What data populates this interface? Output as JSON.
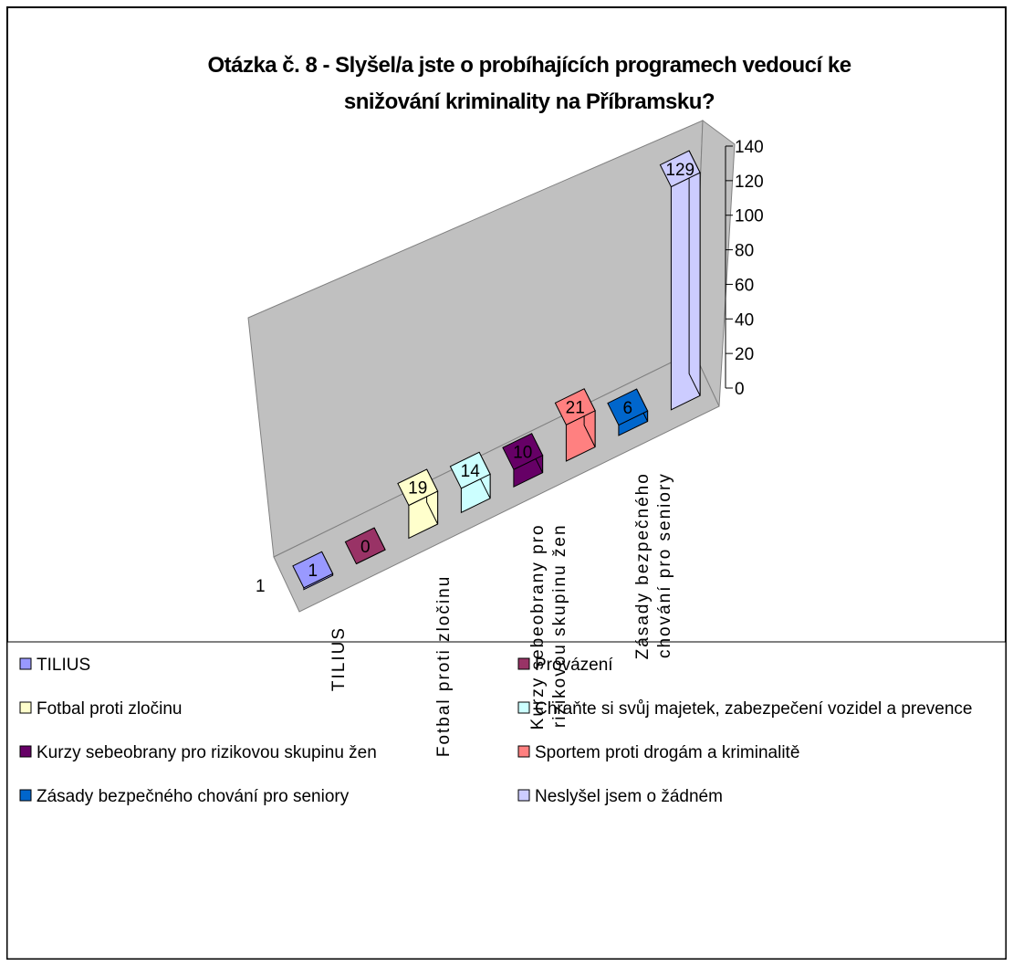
{
  "chart_data": {
    "type": "bar",
    "title": "Otázka č. 8 - Slyšel/a jste o probíhajících programech vedoucí ke snižování kriminality na Příbramsku?",
    "categories": [
      "1"
    ],
    "series": [
      {
        "name": "TILIUS",
        "color": "#9999ff",
        "values": [
          1
        ]
      },
      {
        "name": "Provázení",
        "color": "#993366",
        "values": [
          0
        ]
      },
      {
        "name": "Fotbal proti zločinu",
        "color": "#ffffcc",
        "values": [
          19
        ]
      },
      {
        "name": "Chraňte si svůj majetek, zabezpečení vozidel a prevence",
        "color": "#ccffff",
        "values": [
          14
        ]
      },
      {
        "name": "Kurzy sebeobrany pro rizikovou skupinu žen",
        "color": "#660066",
        "values": [
          10
        ]
      },
      {
        "name": "Sportem proti drogám a kriminalitě",
        "color": "#ff8080",
        "values": [
          21
        ]
      },
      {
        "name": "Zásady bezpečného chování pro seniory",
        "color": "#0066cc",
        "values": [
          6
        ]
      },
      {
        "name": "Neslyšel jsem o žádném",
        "color": "#ccccff",
        "values": [
          129
        ]
      }
    ],
    "ylim": [
      0,
      140
    ],
    "yticks": [
      0,
      20,
      40,
      60,
      80,
      100,
      120,
      140
    ],
    "legend": "bottom"
  }
}
